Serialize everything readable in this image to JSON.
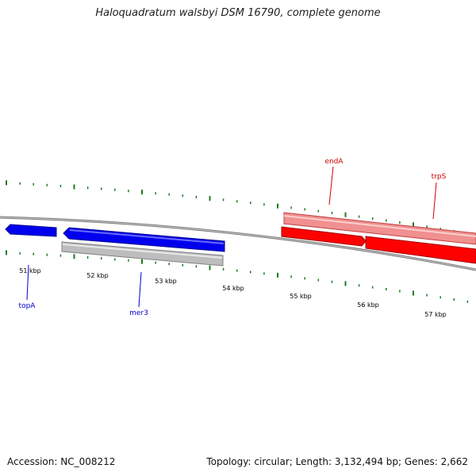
{
  "title": "Haloquadratum walsbyi DSM 16790, complete genome",
  "footer": {
    "accession": "Accession: NC_008212",
    "summary": "Topology: circular; Length: 3,132,494 bp; Genes: 2,662"
  },
  "colors": {
    "backbone": "#7a7a7a",
    "tick": "#1f7a1f",
    "forward_gene": "#e00000",
    "forward_gene_light": "#f09090",
    "reverse_gene": "#0000e0",
    "pseudo_gene": "#bdbdbd",
    "forward_label": "#cc0000",
    "reverse_label": "#0000cc"
  },
  "ticks": [
    {
      "label": "51 kbp"
    },
    {
      "label": "52 kbp"
    },
    {
      "label": "53 kbp"
    },
    {
      "label": "54 kbp"
    },
    {
      "label": "55 kbp"
    },
    {
      "label": "56 kbp"
    },
    {
      "label": "57 kbp"
    }
  ],
  "gene_labels": [
    {
      "name": "endA",
      "strand": "forward"
    },
    {
      "name": "trpS",
      "strand": "forward"
    },
    {
      "name": "topA",
      "strand": "reverse"
    },
    {
      "name": "mer3",
      "strand": "reverse"
    }
  ]
}
